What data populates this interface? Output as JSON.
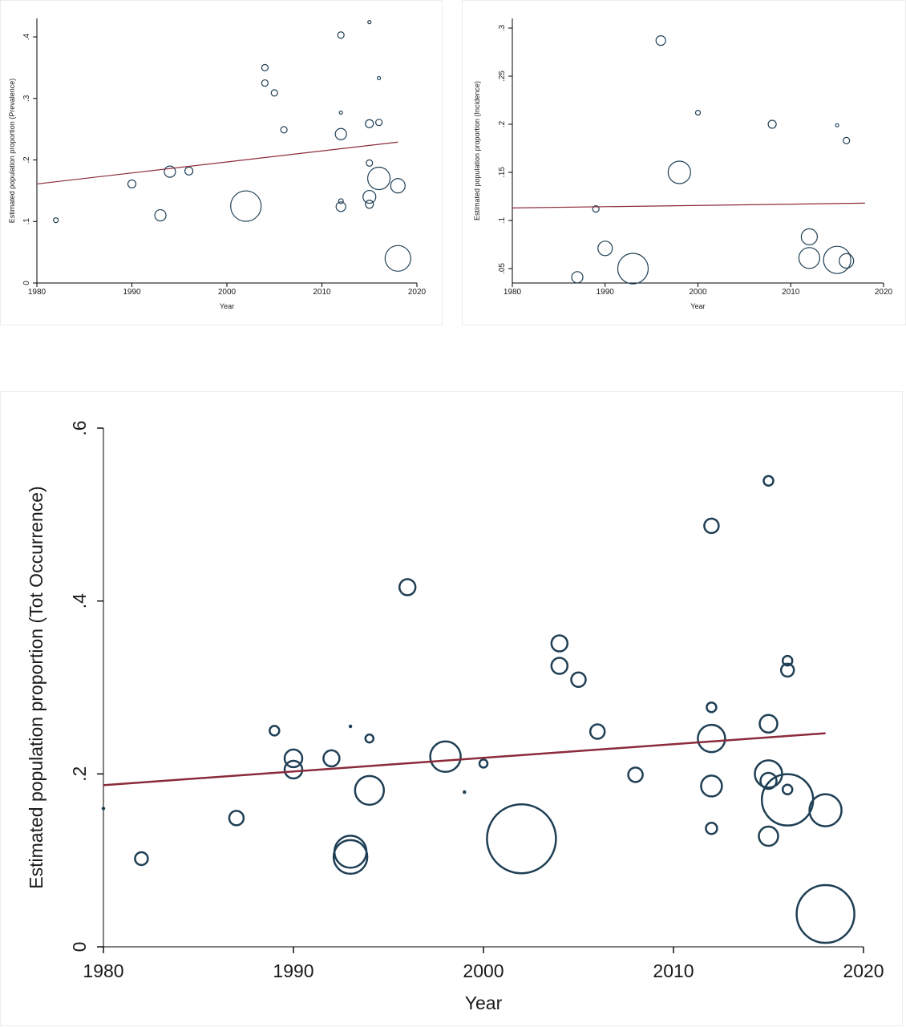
{
  "colors": {
    "marker": "#1f3f55",
    "fit_line": "#8b2a3a",
    "axis": "#000000",
    "text": "#1a1a1a"
  },
  "chart_data": [
    {
      "type": "scatter",
      "title": "",
      "xlabel": "Year",
      "ylabel": "Estimated population proportion (Prevalence)",
      "xlim": [
        1980,
        2020
      ],
      "ylim": [
        0,
        0.43
      ],
      "x_ticks": [
        1980,
        1990,
        2000,
        2010,
        2020
      ],
      "x_tick_labels": [
        "1980",
        "1990",
        "2000",
        "2010",
        "2020"
      ],
      "y_ticks": [
        0,
        0.1,
        0.2,
        0.3,
        0.4
      ],
      "y_tick_labels": [
        "0",
        ".1",
        ".2",
        ".3",
        ".4"
      ],
      "marker": "hollow circle, size proportional to weight",
      "points": [
        {
          "x": 1982,
          "y": 0.102,
          "size": 3
        },
        {
          "x": 1990,
          "y": 0.161,
          "size": 5
        },
        {
          "x": 1993,
          "y": 0.11,
          "size": 7
        },
        {
          "x": 1994,
          "y": 0.181,
          "size": 7
        },
        {
          "x": 1996,
          "y": 0.182,
          "size": 5
        },
        {
          "x": 2002,
          "y": 0.125,
          "size": 19
        },
        {
          "x": 2004,
          "y": 0.35,
          "size": 4
        },
        {
          "x": 2004,
          "y": 0.325,
          "size": 4
        },
        {
          "x": 2005,
          "y": 0.309,
          "size": 4
        },
        {
          "x": 2006,
          "y": 0.249,
          "size": 4
        },
        {
          "x": 2012,
          "y": 0.403,
          "size": 4
        },
        {
          "x": 2012,
          "y": 0.277,
          "size": 2
        },
        {
          "x": 2012,
          "y": 0.242,
          "size": 7
        },
        {
          "x": 2012,
          "y": 0.133,
          "size": 3
        },
        {
          "x": 2012,
          "y": 0.124,
          "size": 6
        },
        {
          "x": 2015,
          "y": 0.424,
          "size": 2
        },
        {
          "x": 2015,
          "y": 0.259,
          "size": 5
        },
        {
          "x": 2015,
          "y": 0.195,
          "size": 4
        },
        {
          "x": 2015,
          "y": 0.14,
          "size": 8
        },
        {
          "x": 2015,
          "y": 0.128,
          "size": 5
        },
        {
          "x": 2016,
          "y": 0.333,
          "size": 2
        },
        {
          "x": 2016,
          "y": 0.261,
          "size": 4
        },
        {
          "x": 2016,
          "y": 0.17,
          "size": 14
        },
        {
          "x": 2018,
          "y": 0.158,
          "size": 9
        },
        {
          "x": 2018,
          "y": 0.04,
          "size": 16
        }
      ],
      "fit_line": {
        "x": [
          1980,
          2018
        ],
        "y": [
          0.161,
          0.229
        ]
      }
    },
    {
      "type": "scatter",
      "title": "",
      "xlabel": "Year",
      "ylabel": "Estimated population proportion (Incidence)",
      "xlim": [
        1980,
        2020
      ],
      "ylim": [
        0.035,
        0.31
      ],
      "x_ticks": [
        1980,
        1990,
        2000,
        2010,
        2020
      ],
      "x_tick_labels": [
        "1980",
        "1990",
        "2000",
        "2010",
        "2020"
      ],
      "y_ticks": [
        0.05,
        0.1,
        0.15,
        0.2,
        0.25,
        0.3
      ],
      "y_tick_labels": [
        ".05",
        ".1",
        ".15",
        ".2",
        ".25",
        ".3"
      ],
      "marker": "hollow circle, size proportional to weight",
      "points": [
        {
          "x": 1987,
          "y": 0.041,
          "size": 7
        },
        {
          "x": 1989,
          "y": 0.112,
          "size": 4
        },
        {
          "x": 1990,
          "y": 0.071,
          "size": 9
        },
        {
          "x": 1993,
          "y": 0.05,
          "size": 19
        },
        {
          "x": 1996,
          "y": 0.287,
          "size": 6
        },
        {
          "x": 1998,
          "y": 0.15,
          "size": 14
        },
        {
          "x": 2000,
          "y": 0.212,
          "size": 3
        },
        {
          "x": 2008,
          "y": 0.2,
          "size": 5
        },
        {
          "x": 2012,
          "y": 0.083,
          "size": 10
        },
        {
          "x": 2012,
          "y": 0.061,
          "size": 13
        },
        {
          "x": 2015,
          "y": 0.059,
          "size": 17
        },
        {
          "x": 2015,
          "y": 0.199,
          "size": 2
        },
        {
          "x": 2016,
          "y": 0.183,
          "size": 4
        },
        {
          "x": 2016,
          "y": 0.058,
          "size": 9
        }
      ],
      "fit_line": {
        "x": [
          1980,
          2018
        ],
        "y": [
          0.113,
          0.118
        ]
      }
    },
    {
      "type": "scatter",
      "title": "",
      "xlabel": "Year",
      "ylabel": "Estimated population proportion (Tot Occurrence)",
      "xlim": [
        1980,
        2020
      ],
      "ylim": [
        0,
        0.6
      ],
      "x_ticks": [
        1980,
        1990,
        2000,
        2010,
        2020
      ],
      "x_tick_labels": [
        "1980",
        "1990",
        "2000",
        "2010",
        "2020"
      ],
      "y_ticks": [
        0,
        0.2,
        0.4,
        0.6
      ],
      "y_tick_labels": [
        "0",
        ".2",
        ".4",
        ".6"
      ],
      "marker": "hollow circle, size proportional to weight",
      "points": [
        {
          "x": 1980,
          "y": 0.16,
          "size": 1
        },
        {
          "x": 1982,
          "y": 0.102,
          "size": 8
        },
        {
          "x": 1987,
          "y": 0.149,
          "size": 9
        },
        {
          "x": 1989,
          "y": 0.25,
          "size": 6
        },
        {
          "x": 1990,
          "y": 0.218,
          "size": 11
        },
        {
          "x": 1990,
          "y": 0.205,
          "size": 11
        },
        {
          "x": 1992,
          "y": 0.218,
          "size": 10
        },
        {
          "x": 1993,
          "y": 0.11,
          "size": 20
        },
        {
          "x": 1993,
          "y": 0.104,
          "size": 21
        },
        {
          "x": 1993,
          "y": 0.255,
          "size": 1
        },
        {
          "x": 1994,
          "y": 0.241,
          "size": 5
        },
        {
          "x": 1994,
          "y": 0.181,
          "size": 18
        },
        {
          "x": 1996,
          "y": 0.416,
          "size": 10
        },
        {
          "x": 1998,
          "y": 0.22,
          "size": 19
        },
        {
          "x": 1999,
          "y": 0.179,
          "size": 1
        },
        {
          "x": 2000,
          "y": 0.212,
          "size": 5
        },
        {
          "x": 2002,
          "y": 0.125,
          "size": 43
        },
        {
          "x": 2004,
          "y": 0.351,
          "size": 10
        },
        {
          "x": 2004,
          "y": 0.325,
          "size": 10
        },
        {
          "x": 2005,
          "y": 0.309,
          "size": 9
        },
        {
          "x": 2006,
          "y": 0.249,
          "size": 9
        },
        {
          "x": 2008,
          "y": 0.199,
          "size": 9
        },
        {
          "x": 2012,
          "y": 0.487,
          "size": 9
        },
        {
          "x": 2012,
          "y": 0.277,
          "size": 6
        },
        {
          "x": 2012,
          "y": 0.241,
          "size": 17
        },
        {
          "x": 2012,
          "y": 0.186,
          "size": 13
        },
        {
          "x": 2012,
          "y": 0.137,
          "size": 7
        },
        {
          "x": 2015,
          "y": 0.539,
          "size": 6
        },
        {
          "x": 2015,
          "y": 0.258,
          "size": 11
        },
        {
          "x": 2015,
          "y": 0.2,
          "size": 17
        },
        {
          "x": 2015,
          "y": 0.192,
          "size": 10
        },
        {
          "x": 2015,
          "y": 0.128,
          "size": 12
        },
        {
          "x": 2016,
          "y": 0.331,
          "size": 6
        },
        {
          "x": 2016,
          "y": 0.32,
          "size": 8
        },
        {
          "x": 2016,
          "y": 0.182,
          "size": 6
        },
        {
          "x": 2016,
          "y": 0.17,
          "size": 32
        },
        {
          "x": 2018,
          "y": 0.158,
          "size": 20
        },
        {
          "x": 2018,
          "y": 0.038,
          "size": 36
        }
      ],
      "fit_line": {
        "x": [
          1980,
          2018
        ],
        "y": [
          0.187,
          0.247
        ]
      }
    }
  ]
}
